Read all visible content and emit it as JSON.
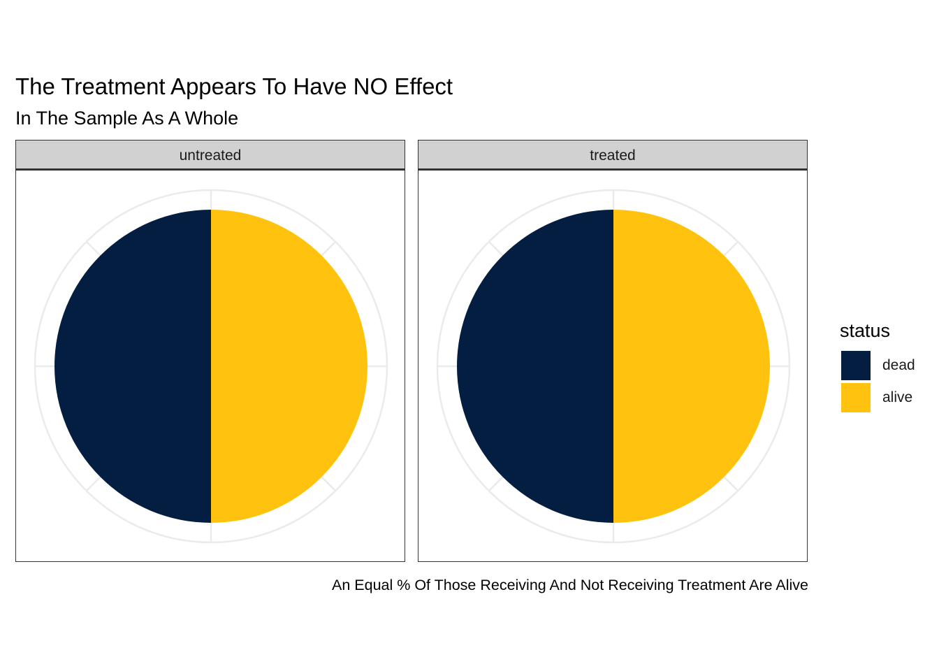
{
  "chart_data": {
    "type": "pie",
    "title": "The Treatment Appears To Have NO Effect",
    "subtitle": "In The Sample As A Whole",
    "caption": "An Equal % Of Those Receiving And Not Receiving Treatment Are Alive",
    "legend": {
      "title": "status",
      "placement": "right"
    },
    "series": [
      {
        "name": "dead",
        "color": "#041E42"
      },
      {
        "name": "alive",
        "color": "#FFC20E"
      }
    ],
    "panels": [
      {
        "label": "untreated",
        "values": [
          50,
          50
        ]
      },
      {
        "label": "treated",
        "values": [
          50,
          50
        ]
      }
    ],
    "grid": true
  }
}
